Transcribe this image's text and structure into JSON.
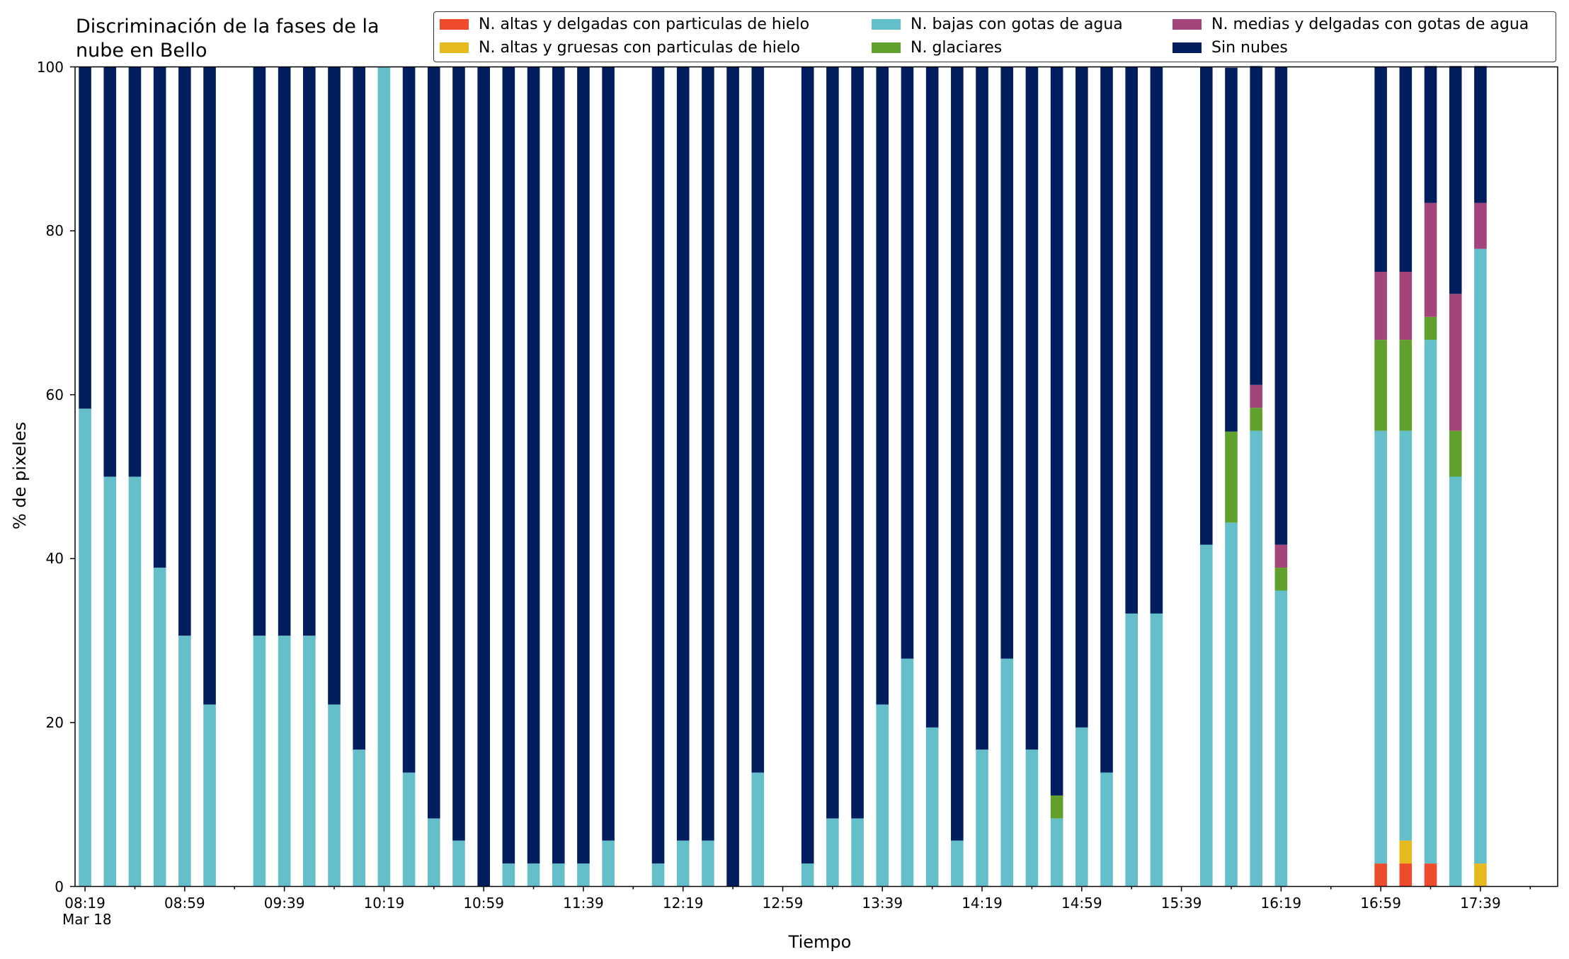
{
  "chart_data": {
    "type": "bar",
    "stacked": true,
    "title_lines": [
      "Discriminación de la fases de la",
      "nube en Bello"
    ],
    "xlabel": "Tiempo",
    "ylabel": "% de pixeles",
    "ylim": [
      0,
      100
    ],
    "yticks": [
      "0",
      "20",
      "40",
      "60",
      "80",
      "100"
    ],
    "xlim_minutes": [
      495,
      1090
    ],
    "xticks": [
      {
        "label": "08:19",
        "minute": 499
      },
      {
        "label": "08:59",
        "minute": 539
      },
      {
        "label": "09:39",
        "minute": 579
      },
      {
        "label": "10:19",
        "minute": 619
      },
      {
        "label": "10:59",
        "minute": 659
      },
      {
        "label": "11:39",
        "minute": 699
      },
      {
        "label": "12:19",
        "minute": 739
      },
      {
        "label": "12:59",
        "minute": 779
      },
      {
        "label": "13:39",
        "minute": 819
      },
      {
        "label": "14:19",
        "minute": 859
      },
      {
        "label": "14:59",
        "minute": 899
      },
      {
        "label": "15:39",
        "minute": 939
      },
      {
        "label": "16:19",
        "minute": 979
      },
      {
        "label": "16:59",
        "minute": 1019
      },
      {
        "label": "17:39",
        "minute": 1059
      }
    ],
    "x_date_label": "Mar 18",
    "series": [
      {
        "name": "N. altas y delgadas con particulas de hielo",
        "color": "#ee4a2c"
      },
      {
        "name": "N. altas y gruesas con particulas de hielo",
        "color": "#e6b91e"
      },
      {
        "name": "N. bajas con gotas de agua",
        "color": "#65bfca"
      },
      {
        "name": "N. glaciares",
        "color": "#5fa12c"
      },
      {
        "name": "N. medias y delgadas con gotas de agua",
        "color": "#a3447a"
      },
      {
        "name": "Sin nubes",
        "color": "#021e5e"
      }
    ],
    "bars": [
      {
        "time": "08:19",
        "values": [
          0,
          0,
          58.3,
          0,
          0,
          41.7
        ]
      },
      {
        "time": "08:29",
        "values": [
          0,
          0,
          50.0,
          0,
          0,
          50.0
        ]
      },
      {
        "time": "08:39",
        "values": [
          0,
          0,
          50.0,
          0,
          0,
          50.0
        ]
      },
      {
        "time": "08:49",
        "values": [
          0,
          0,
          38.9,
          0,
          0,
          61.1
        ]
      },
      {
        "time": "08:59",
        "values": [
          0,
          0,
          30.6,
          0,
          0,
          69.4
        ]
      },
      {
        "time": "09:09",
        "values": [
          0,
          0,
          22.2,
          0,
          0,
          77.8
        ]
      },
      {
        "time": "09:29",
        "values": [
          0,
          0,
          30.6,
          0,
          0,
          69.4
        ]
      },
      {
        "time": "09:39",
        "values": [
          0,
          0,
          30.6,
          0,
          0,
          69.4
        ]
      },
      {
        "time": "09:49",
        "values": [
          0,
          0,
          30.6,
          0,
          0,
          69.4
        ]
      },
      {
        "time": "09:59",
        "values": [
          0,
          0,
          22.2,
          0,
          0,
          77.8
        ]
      },
      {
        "time": "10:09",
        "values": [
          0,
          0,
          16.7,
          0,
          0,
          83.3
        ]
      },
      {
        "time": "10:19",
        "values": [
          0,
          0,
          100,
          0,
          0,
          0
        ]
      },
      {
        "time": "10:29",
        "values": [
          0,
          0,
          13.9,
          0,
          0,
          86.1
        ]
      },
      {
        "time": "10:39",
        "values": [
          0,
          0,
          8.3,
          0,
          0,
          91.7
        ]
      },
      {
        "time": "10:49",
        "values": [
          0,
          0,
          5.6,
          0,
          0,
          94.4
        ]
      },
      {
        "time": "10:59",
        "values": [
          0,
          0,
          0,
          0,
          0,
          100
        ]
      },
      {
        "time": "11:09",
        "values": [
          0,
          0,
          2.8,
          0,
          0,
          97.2
        ]
      },
      {
        "time": "11:19",
        "values": [
          0,
          0,
          2.8,
          0,
          0,
          97.2
        ]
      },
      {
        "time": "11:29",
        "values": [
          0,
          0,
          2.8,
          0,
          0,
          97.2
        ]
      },
      {
        "time": "11:39",
        "values": [
          0,
          0,
          2.8,
          0,
          0,
          97.2
        ]
      },
      {
        "time": "11:49",
        "values": [
          0,
          0,
          5.6,
          0,
          0,
          94.4
        ]
      },
      {
        "time": "12:09",
        "values": [
          0,
          0,
          2.8,
          0,
          0,
          97.2
        ]
      },
      {
        "time": "12:19",
        "values": [
          0,
          0,
          5.6,
          0,
          0,
          94.4
        ]
      },
      {
        "time": "12:29",
        "values": [
          0,
          0,
          5.6,
          0,
          0,
          94.4
        ]
      },
      {
        "time": "12:39",
        "values": [
          0,
          0,
          0,
          0,
          0,
          100
        ]
      },
      {
        "time": "12:49",
        "values": [
          0,
          0,
          13.9,
          0,
          0,
          86.1
        ]
      },
      {
        "time": "13:09",
        "values": [
          0,
          0,
          2.8,
          0,
          0,
          97.2
        ]
      },
      {
        "time": "13:19",
        "values": [
          0,
          0,
          8.3,
          0,
          0,
          91.7
        ]
      },
      {
        "time": "13:29",
        "values": [
          0,
          0,
          8.3,
          0,
          0,
          91.7
        ]
      },
      {
        "time": "13:39",
        "values": [
          0,
          0,
          22.2,
          0,
          0,
          77.8
        ]
      },
      {
        "time": "13:49",
        "values": [
          0,
          0,
          27.8,
          0,
          0,
          72.2
        ]
      },
      {
        "time": "13:59",
        "values": [
          0,
          0,
          19.4,
          0,
          0,
          80.6
        ]
      },
      {
        "time": "14:09",
        "values": [
          0,
          0,
          5.6,
          0,
          0,
          94.4
        ]
      },
      {
        "time": "14:19",
        "values": [
          0,
          0,
          16.7,
          0,
          0,
          83.3
        ]
      },
      {
        "time": "14:29",
        "values": [
          0,
          0,
          27.8,
          0,
          0,
          72.2
        ]
      },
      {
        "time": "14:39",
        "values": [
          0,
          0,
          16.7,
          0,
          0,
          83.3
        ]
      },
      {
        "time": "14:49",
        "values": [
          0,
          0,
          8.3,
          2.8,
          0,
          88.9
        ]
      },
      {
        "time": "14:59",
        "values": [
          0,
          0,
          19.4,
          0,
          0,
          80.6
        ]
      },
      {
        "time": "15:09",
        "values": [
          0,
          0,
          13.9,
          0,
          0,
          86.1
        ]
      },
      {
        "time": "15:19",
        "values": [
          0,
          0,
          33.3,
          0,
          0,
          66.7
        ]
      },
      {
        "time": "15:29",
        "values": [
          0,
          0,
          33.3,
          0,
          0,
          66.7
        ]
      },
      {
        "time": "15:49",
        "values": [
          0,
          0,
          41.7,
          0,
          0,
          58.3
        ]
      },
      {
        "time": "15:59",
        "values": [
          0,
          0,
          44.4,
          11.1,
          0,
          44.4
        ]
      },
      {
        "time": "16:09",
        "values": [
          0,
          0,
          55.6,
          2.8,
          2.8,
          38.9
        ]
      },
      {
        "time": "16:19",
        "values": [
          0,
          0,
          36.1,
          2.8,
          2.8,
          58.3
        ]
      },
      {
        "time": "16:59",
        "values": [
          2.8,
          0,
          52.8,
          11.1,
          8.3,
          25.0
        ]
      },
      {
        "time": "17:09",
        "values": [
          2.8,
          2.8,
          50.0,
          11.1,
          8.3,
          25.0
        ]
      },
      {
        "time": "17:19",
        "values": [
          2.8,
          0,
          63.9,
          2.8,
          13.9,
          16.7
        ]
      },
      {
        "time": "17:29",
        "values": [
          0,
          0,
          50.0,
          5.6,
          16.7,
          27.8
        ]
      },
      {
        "time": "17:39",
        "values": [
          0,
          2.8,
          75.0,
          0,
          5.6,
          16.7
        ]
      }
    ]
  }
}
